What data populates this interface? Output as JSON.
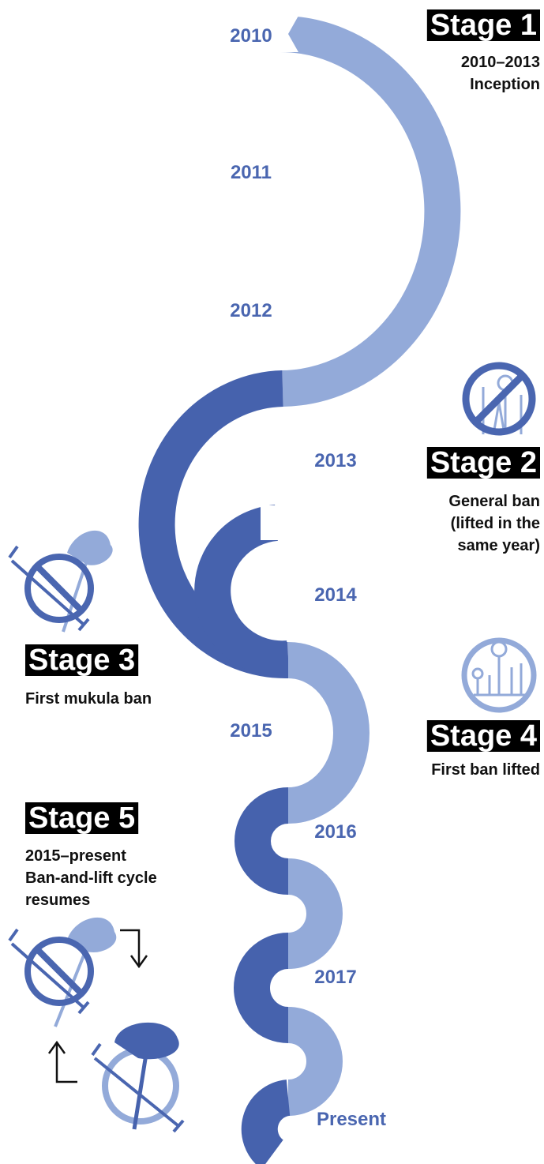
{
  "years": [
    "2010",
    "2011",
    "2012",
    "2013",
    "2014",
    "2015",
    "2016",
    "2017",
    "Present"
  ],
  "stages": [
    {
      "title": "Stage 1",
      "lines": [
        "2010–2013",
        "Inception"
      ]
    },
    {
      "title": "Stage 2",
      "lines": [
        "General ban",
        "(lifted in the",
        "same year)"
      ]
    },
    {
      "title": "Stage 3",
      "lines": [
        "First mukula ban"
      ]
    },
    {
      "title": "Stage 4",
      "lines": [
        "First ban lifted"
      ]
    },
    {
      "title": "Stage 5",
      "lines": [
        "2015–present",
        "Ban-and-lift cycle",
        "resumes"
      ]
    }
  ]
}
